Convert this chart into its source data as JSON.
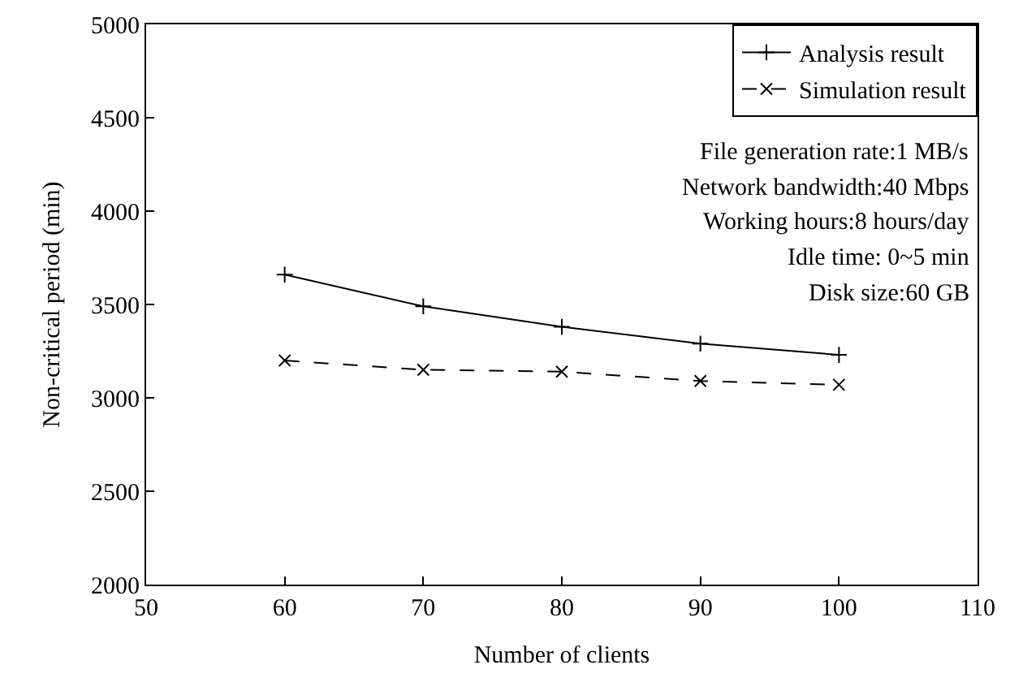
{
  "chart_data": {
    "type": "line",
    "xlabel": "Number of clients",
    "ylabel": "Non-critical period (min)",
    "x": [
      60,
      70,
      80,
      90,
      100
    ],
    "series": [
      {
        "name": "Analysis result",
        "color": "#000000",
        "values": [
          3660,
          3490,
          3380,
          3290,
          3230
        ],
        "marker": "cross",
        "line_style": "solid"
      },
      {
        "name": "Simulation result",
        "color": "#000000",
        "values": [
          3200,
          3150,
          3140,
          3090,
          3070
        ],
        "marker": "x",
        "line_style": "dashed"
      }
    ],
    "xlim": [
      50,
      110
    ],
    "xticks": [
      50,
      60,
      70,
      80,
      90,
      100,
      110
    ],
    "ylim": [
      2000,
      5000
    ],
    "yticks": [
      2000,
      2500,
      3000,
      3500,
      4000,
      4500,
      5000
    ],
    "legend": "top right",
    "annotations": [
      "File generation rate:1 MB/s",
      "Network bandwidth:40 Mbps",
      "Working hours:8 hours/day",
      "Idle time: 0~5 min",
      "Disk size:60 GB"
    ]
  }
}
